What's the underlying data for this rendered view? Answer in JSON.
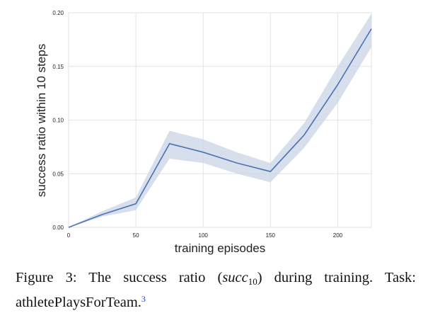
{
  "chart_data": {
    "type": "line",
    "xlabel": "training episodes",
    "ylabel": "success ratio within 10 steps",
    "xlim": [
      0,
      225
    ],
    "ylim": [
      0,
      0.2
    ],
    "xticks": [
      "0",
      "50",
      "100",
      "150",
      "200"
    ],
    "xtick_values": [
      0,
      50,
      100,
      150,
      200
    ],
    "yticks": [
      "0.00",
      "0.05",
      "0.10",
      "0.15",
      "0.20"
    ],
    "ytick_values": [
      0,
      0.05,
      0.1,
      0.15,
      0.2
    ],
    "grid": true,
    "line_color": "#4c72b0",
    "band_color": "#c9d4e6",
    "series": [
      {
        "x": [
          0,
          25,
          50,
          75,
          100,
          125,
          150,
          175,
          200,
          225
        ],
        "y": [
          0.0,
          0.012,
          0.022,
          0.078,
          0.07,
          0.06,
          0.052,
          0.086,
          0.133,
          0.185
        ],
        "lower": [
          0.0,
          0.01,
          0.016,
          0.064,
          0.06,
          0.05,
          0.042,
          0.074,
          0.116,
          0.168
        ],
        "upper": [
          0.0,
          0.015,
          0.028,
          0.09,
          0.082,
          0.07,
          0.06,
          0.097,
          0.15,
          0.199
        ]
      }
    ]
  },
  "caption": {
    "line1_prefix": "Figure 3: The success ratio (",
    "line1_math": "succ",
    "line1_sub": "10",
    "line1_suffix": ") during training. Task:",
    "line2": "athletePlaysForTeam.",
    "footnote": "3"
  }
}
